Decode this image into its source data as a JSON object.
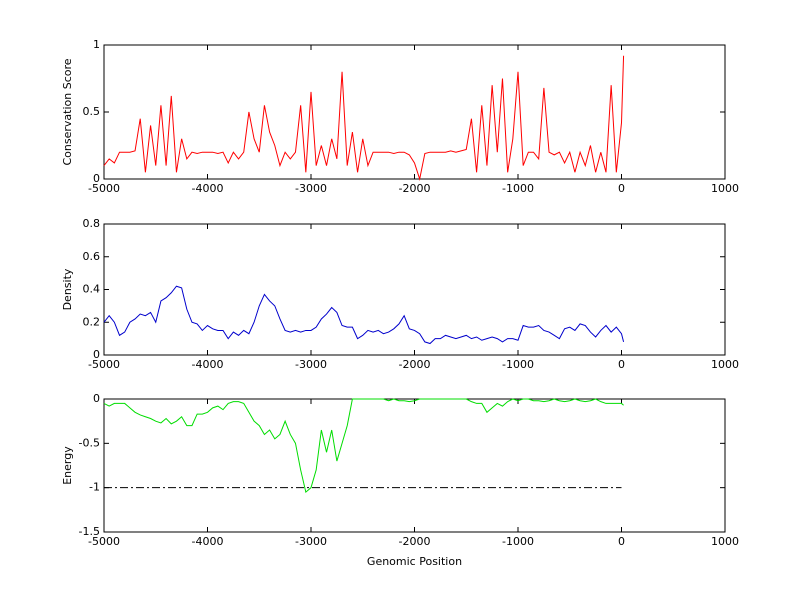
{
  "chart_data": [
    {
      "type": "line",
      "ylabel": "Conservation Score",
      "color": "#ff0000",
      "x": [
        -5000,
        -4950,
        -4900,
        -4850,
        -4800,
        -4750,
        -4700,
        -4650,
        -4600,
        -4550,
        -4500,
        -4450,
        -4400,
        -4350,
        -4300,
        -4250,
        -4200,
        -4150,
        -4100,
        -4050,
        -4000,
        -3950,
        -3900,
        -3850,
        -3800,
        -3750,
        -3700,
        -3650,
        -3600,
        -3550,
        -3500,
        -3450,
        -3400,
        -3350,
        -3300,
        -3250,
        -3200,
        -3150,
        -3100,
        -3050,
        -3000,
        -2950,
        -2900,
        -2850,
        -2800,
        -2750,
        -2700,
        -2650,
        -2600,
        -2550,
        -2500,
        -2450,
        -2400,
        -2350,
        -2300,
        -2250,
        -2200,
        -2150,
        -2100,
        -2050,
        -2000,
        -1950,
        -1900,
        -1850,
        -1800,
        -1750,
        -1700,
        -1650,
        -1600,
        -1550,
        -1500,
        -1450,
        -1400,
        -1350,
        -1300,
        -1250,
        -1200,
        -1150,
        -1100,
        -1050,
        -1000,
        -950,
        -900,
        -850,
        -800,
        -750,
        -700,
        -650,
        -600,
        -550,
        -500,
        -450,
        -400,
        -350,
        -300,
        -250,
        -200,
        -150,
        -100,
        -50,
        0,
        20
      ],
      "values": [
        0.1,
        0.15,
        0.12,
        0.2,
        0.2,
        0.2,
        0.21,
        0.45,
        0.05,
        0.4,
        0.1,
        0.55,
        0.1,
        0.62,
        0.05,
        0.3,
        0.15,
        0.2,
        0.19,
        0.2,
        0.2,
        0.2,
        0.19,
        0.2,
        0.12,
        0.2,
        0.15,
        0.2,
        0.5,
        0.3,
        0.2,
        0.55,
        0.35,
        0.25,
        0.1,
        0.2,
        0.15,
        0.2,
        0.55,
        0.05,
        0.65,
        0.1,
        0.25,
        0.1,
        0.3,
        0.15,
        0.8,
        0.1,
        0.35,
        0.05,
        0.3,
        0.1,
        0.2,
        0.2,
        0.2,
        0.2,
        0.19,
        0.2,
        0.2,
        0.18,
        0.12,
        0,
        0.19,
        0.2,
        0.2,
        0.2,
        0.2,
        0.21,
        0.2,
        0.21,
        0.22,
        0.45,
        0.05,
        0.55,
        0.1,
        0.7,
        0.2,
        0.75,
        0.05,
        0.3,
        0.8,
        0.1,
        0.2,
        0.2,
        0.15,
        0.68,
        0.2,
        0.18,
        0.2,
        0.12,
        0.2,
        0.05,
        0.2,
        0.1,
        0.25,
        0.05,
        0.2,
        0.05,
        0.7,
        0.05,
        0.42,
        0.92
      ],
      "xlim": [
        -5000,
        1000
      ],
      "xticks": [
        -5000,
        -4000,
        -3000,
        -2000,
        -1000,
        0,
        1000
      ],
      "ylim": [
        0,
        1
      ],
      "yticks": [
        0,
        0.5,
        1
      ]
    },
    {
      "type": "line",
      "ylabel": "Density",
      "color": "#0000cc",
      "x": [
        -5000,
        -4950,
        -4900,
        -4850,
        -4800,
        -4750,
        -4700,
        -4650,
        -4600,
        -4550,
        -4500,
        -4450,
        -4400,
        -4350,
        -4300,
        -4250,
        -4200,
        -4150,
        -4100,
        -4050,
        -4000,
        -3950,
        -3900,
        -3850,
        -3800,
        -3750,
        -3700,
        -3650,
        -3600,
        -3550,
        -3500,
        -3450,
        -3400,
        -3350,
        -3300,
        -3250,
        -3200,
        -3150,
        -3100,
        -3050,
        -3000,
        -2950,
        -2900,
        -2850,
        -2800,
        -2750,
        -2700,
        -2650,
        -2600,
        -2550,
        -2500,
        -2450,
        -2400,
        -2350,
        -2300,
        -2250,
        -2200,
        -2150,
        -2100,
        -2050,
        -2000,
        -1950,
        -1900,
        -1850,
        -1800,
        -1750,
        -1700,
        -1650,
        -1600,
        -1550,
        -1500,
        -1450,
        -1400,
        -1350,
        -1300,
        -1250,
        -1200,
        -1150,
        -1100,
        -1050,
        -1000,
        -950,
        -900,
        -850,
        -800,
        -750,
        -700,
        -650,
        -600,
        -550,
        -500,
        -450,
        -400,
        -350,
        -300,
        -250,
        -200,
        -150,
        -100,
        -50,
        0,
        20
      ],
      "values": [
        0.2,
        0.24,
        0.2,
        0.12,
        0.14,
        0.2,
        0.22,
        0.25,
        0.24,
        0.26,
        0.2,
        0.33,
        0.35,
        0.38,
        0.42,
        0.41,
        0.28,
        0.2,
        0.19,
        0.15,
        0.18,
        0.16,
        0.15,
        0.15,
        0.1,
        0.14,
        0.12,
        0.15,
        0.13,
        0.2,
        0.3,
        0.37,
        0.33,
        0.3,
        0.22,
        0.15,
        0.14,
        0.15,
        0.14,
        0.15,
        0.15,
        0.17,
        0.22,
        0.25,
        0.29,
        0.26,
        0.18,
        0.17,
        0.17,
        0.1,
        0.12,
        0.15,
        0.14,
        0.15,
        0.13,
        0.14,
        0.16,
        0.19,
        0.24,
        0.16,
        0.15,
        0.13,
        0.08,
        0.07,
        0.1,
        0.1,
        0.12,
        0.11,
        0.1,
        0.11,
        0.12,
        0.1,
        0.11,
        0.09,
        0.1,
        0.11,
        0.1,
        0.08,
        0.1,
        0.1,
        0.09,
        0.18,
        0.17,
        0.17,
        0.18,
        0.15,
        0.14,
        0.12,
        0.1,
        0.16,
        0.17,
        0.15,
        0.19,
        0.18,
        0.14,
        0.11,
        0.15,
        0.18,
        0.14,
        0.17,
        0.13,
        0.08
      ],
      "xlim": [
        -5000,
        1000
      ],
      "xticks": [
        -5000,
        -4000,
        -3000,
        -2000,
        -1000,
        0,
        1000
      ],
      "ylim": [
        0,
        0.8
      ],
      "yticks": [
        0,
        0.2,
        0.4,
        0.6,
        0.8
      ]
    },
    {
      "type": "line",
      "ylabel": "Energy",
      "xlabel": "Genomic Position",
      "color": "#00dd00",
      "x": [
        -5000,
        -4950,
        -4900,
        -4850,
        -4800,
        -4750,
        -4700,
        -4650,
        -4600,
        -4550,
        -4500,
        -4450,
        -4400,
        -4350,
        -4300,
        -4250,
        -4200,
        -4150,
        -4100,
        -4050,
        -4000,
        -3950,
        -3900,
        -3850,
        -3800,
        -3750,
        -3700,
        -3650,
        -3600,
        -3550,
        -3500,
        -3450,
        -3400,
        -3350,
        -3300,
        -3250,
        -3200,
        -3150,
        -3100,
        -3050,
        -3000,
        -2950,
        -2900,
        -2850,
        -2800,
        -2750,
        -2700,
        -2650,
        -2600,
        -2550,
        -2500,
        -2450,
        -2400,
        -2350,
        -2300,
        -2250,
        -2200,
        -2150,
        -2100,
        -2050,
        -2000,
        -1950,
        -1900,
        -1850,
        -1800,
        -1750,
        -1700,
        -1650,
        -1600,
        -1550,
        -1500,
        -1450,
        -1400,
        -1350,
        -1300,
        -1250,
        -1200,
        -1150,
        -1100,
        -1050,
        -1000,
        -950,
        -900,
        -850,
        -800,
        -750,
        -700,
        -650,
        -600,
        -550,
        -500,
        -450,
        -400,
        -350,
        -300,
        -250,
        -200,
        -150,
        -100,
        -50,
        0,
        20
      ],
      "values": [
        -0.05,
        -0.08,
        -0.05,
        -0.05,
        -0.05,
        -0.1,
        -0.15,
        -0.18,
        -0.2,
        -0.22,
        -0.25,
        -0.27,
        -0.22,
        -0.28,
        -0.25,
        -0.2,
        -0.3,
        -0.3,
        -0.17,
        -0.17,
        -0.15,
        -0.1,
        -0.08,
        -0.12,
        -0.05,
        -0.03,
        -0.03,
        -0.05,
        -0.15,
        -0.25,
        -0.3,
        -0.4,
        -0.35,
        -0.45,
        -0.4,
        -0.25,
        -0.4,
        -0.5,
        -0.8,
        -1.05,
        -1,
        -0.8,
        -0.35,
        -0.6,
        -0.35,
        -0.7,
        -0.5,
        -0.3,
        0,
        0,
        0,
        0,
        0,
        0,
        0,
        -0.02,
        0,
        -0.02,
        -0.02,
        -0.03,
        -0.02,
        0,
        0,
        0,
        0,
        0,
        0,
        0,
        0,
        0,
        0,
        -0.03,
        -0.05,
        -0.05,
        -0.15,
        -0.1,
        -0.05,
        -0.08,
        -0.03,
        0,
        -0.02,
        0,
        0,
        -0.02,
        -0.02,
        -0.03,
        -0.02,
        0,
        -0.02,
        -0.03,
        -0.02,
        0,
        -0.02,
        -0.03,
        -0.02,
        0,
        -0.03,
        -0.05,
        -0.05,
        -0.05,
        -0.05,
        -0.07
      ],
      "hline": {
        "value": -1,
        "x": [
          -5000,
          0
        ],
        "color": "#000000"
      },
      "xlim": [
        -5000,
        1000
      ],
      "xticks": [
        -5000,
        -4000,
        -3000,
        -2000,
        -1000,
        0,
        1000
      ],
      "ylim": [
        -1.5,
        0
      ],
      "yticks": [
        -1.5,
        -1,
        -0.5,
        0
      ]
    }
  ]
}
